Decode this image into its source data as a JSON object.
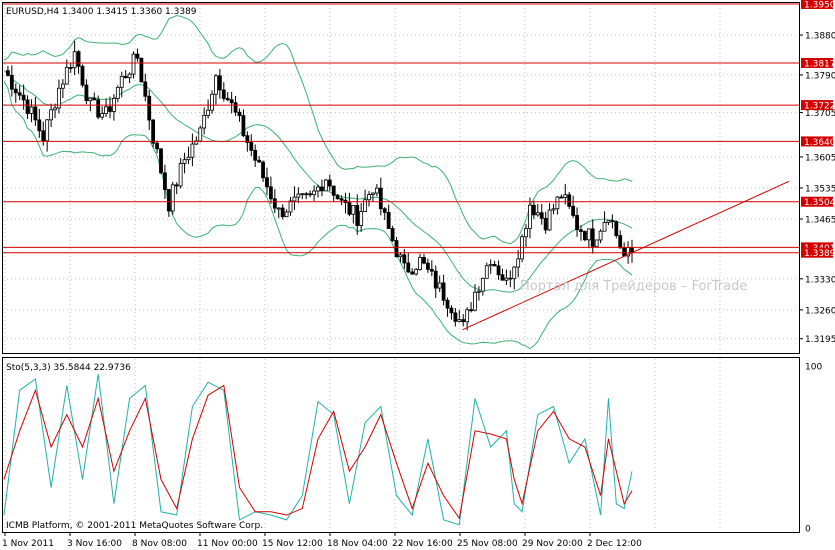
{
  "main_title": "EURUSD,H4  1.3400 1.3415 1.3360 1.3389",
  "watermark": "Портал для Трейдеров – ForTrade",
  "copyright": "ICMB Platform, © 2001-2011 MetaQuotes Software Corp.",
  "stoch_title": "Sto(5,3,3) 35.5844 22.9736",
  "colors": {
    "candle": "#000000",
    "bands": "#3cb371",
    "hline": "#d40000",
    "trend": "#d40000",
    "stoch_main": "#20b2aa",
    "stoch_signal": "#d40000",
    "tag_bg": "#d40000",
    "tag_text": "#ffffff"
  },
  "price_axis": {
    "ymin": 1.3165,
    "ymax": 1.395,
    "ticks": [
      "1.3880",
      "1.3790",
      "1.3705",
      "1.3605",
      "1.3535",
      "1.3465",
      "1.3330",
      "1.3260",
      "1.3195"
    ]
  },
  "hlines": [
    {
      "value": 1.395,
      "label": "1.3950"
    },
    {
      "value": 1.3817,
      "label": "1.3817"
    },
    {
      "value": 1.3722,
      "label": "1.3722"
    },
    {
      "value": 1.364,
      "label": "1.3640"
    },
    {
      "value": 1.3504,
      "label": "1.3504"
    },
    {
      "value": 1.3401,
      "label": "1.3401"
    },
    {
      "value": 1.3389,
      "label": "1.3389"
    }
  ],
  "stoch_axis": {
    "ymin": 0,
    "ymax": 100,
    "ticks": [
      "100",
      "0"
    ]
  },
  "time_labels": [
    "1 Nov 2011",
    "3 Nov 16:00",
    "8 Nov 08:00",
    "11 Nov 00:00",
    "15 Nov 12:00",
    "18 Nov 04:00",
    "22 Nov 16:00",
    "25 Nov 08:00",
    "29 Nov 20:00",
    "2 Dec 12:00"
  ],
  "chart_data": {
    "type": "line",
    "trendline": {
      "from_bar": 0.73,
      "from_value": 1.3215,
      "to_bar": 1.25,
      "to_value": 1.355
    },
    "price_path": [
      [
        0,
        1.38
      ],
      [
        6,
        1.372
      ],
      [
        10,
        1.365
      ],
      [
        14,
        1.376
      ],
      [
        18,
        1.384
      ],
      [
        22,
        1.372
      ],
      [
        26,
        1.37
      ],
      [
        30,
        1.378
      ],
      [
        34,
        1.383
      ],
      [
        38,
        1.365
      ],
      [
        42,
        1.35
      ],
      [
        46,
        1.36
      ],
      [
        50,
        1.366
      ],
      [
        54,
        1.379
      ],
      [
        58,
        1.372
      ],
      [
        62,
        1.364
      ],
      [
        66,
        1.356
      ],
      [
        70,
        1.348
      ],
      [
        74,
        1.35
      ],
      [
        78,
        1.351
      ],
      [
        82,
        1.356
      ],
      [
        86,
        1.35
      ],
      [
        90,
        1.347
      ],
      [
        94,
        1.354
      ],
      [
        98,
        1.344
      ],
      [
        102,
        1.335
      ],
      [
        106,
        1.337
      ],
      [
        110,
        1.332
      ],
      [
        114,
        1.327
      ],
      [
        117,
        1.322
      ],
      [
        120,
        1.33
      ],
      [
        124,
        1.338
      ],
      [
        128,
        1.332
      ],
      [
        132,
        1.342
      ],
      [
        134,
        1.35
      ],
      [
        138,
        1.346
      ],
      [
        142,
        1.352
      ],
      [
        146,
        1.345
      ],
      [
        150,
        1.342
      ],
      [
        154,
        1.348
      ],
      [
        158,
        1.338
      ],
      [
        160,
        1.3389
      ]
    ],
    "stoch_main": [
      [
        0,
        8
      ],
      [
        4,
        85
      ],
      [
        8,
        92
      ],
      [
        12,
        25
      ],
      [
        16,
        88
      ],
      [
        20,
        30
      ],
      [
        24,
        95
      ],
      [
        28,
        15
      ],
      [
        32,
        80
      ],
      [
        36,
        88
      ],
      [
        40,
        10
      ],
      [
        44,
        8
      ],
      [
        48,
        75
      ],
      [
        52,
        90
      ],
      [
        56,
        85
      ],
      [
        60,
        5
      ],
      [
        64,
        10
      ],
      [
        68,
        8
      ],
      [
        72,
        5
      ],
      [
        76,
        20
      ],
      [
        80,
        78
      ],
      [
        84,
        70
      ],
      [
        88,
        15
      ],
      [
        92,
        65
      ],
      [
        96,
        75
      ],
      [
        100,
        20
      ],
      [
        104,
        8
      ],
      [
        108,
        55
      ],
      [
        112,
        5
      ],
      [
        116,
        2
      ],
      [
        120,
        80
      ],
      [
        124,
        50
      ],
      [
        128,
        60
      ],
      [
        130,
        15
      ],
      [
        132,
        10
      ],
      [
        136,
        70
      ],
      [
        140,
        75
      ],
      [
        144,
        40
      ],
      [
        148,
        55
      ],
      [
        152,
        8
      ],
      [
        154,
        80
      ],
      [
        156,
        15
      ],
      [
        158,
        12
      ],
      [
        160,
        35
      ]
    ],
    "stoch_signal": [
      [
        0,
        30
      ],
      [
        4,
        60
      ],
      [
        8,
        85
      ],
      [
        12,
        50
      ],
      [
        16,
        70
      ],
      [
        20,
        50
      ],
      [
        24,
        80
      ],
      [
        28,
        35
      ],
      [
        32,
        60
      ],
      [
        36,
        80
      ],
      [
        40,
        30
      ],
      [
        44,
        12
      ],
      [
        48,
        55
      ],
      [
        52,
        82
      ],
      [
        56,
        88
      ],
      [
        60,
        25
      ],
      [
        64,
        10
      ],
      [
        68,
        10
      ],
      [
        72,
        8
      ],
      [
        76,
        12
      ],
      [
        80,
        55
      ],
      [
        84,
        72
      ],
      [
        88,
        35
      ],
      [
        92,
        50
      ],
      [
        96,
        70
      ],
      [
        100,
        40
      ],
      [
        104,
        12
      ],
      [
        108,
        40
      ],
      [
        112,
        20
      ],
      [
        116,
        6
      ],
      [
        120,
        60
      ],
      [
        124,
        58
      ],
      [
        128,
        55
      ],
      [
        130,
        30
      ],
      [
        132,
        15
      ],
      [
        136,
        60
      ],
      [
        140,
        72
      ],
      [
        144,
        55
      ],
      [
        148,
        50
      ],
      [
        152,
        20
      ],
      [
        154,
        55
      ],
      [
        156,
        35
      ],
      [
        158,
        15
      ],
      [
        160,
        23
      ]
    ]
  }
}
